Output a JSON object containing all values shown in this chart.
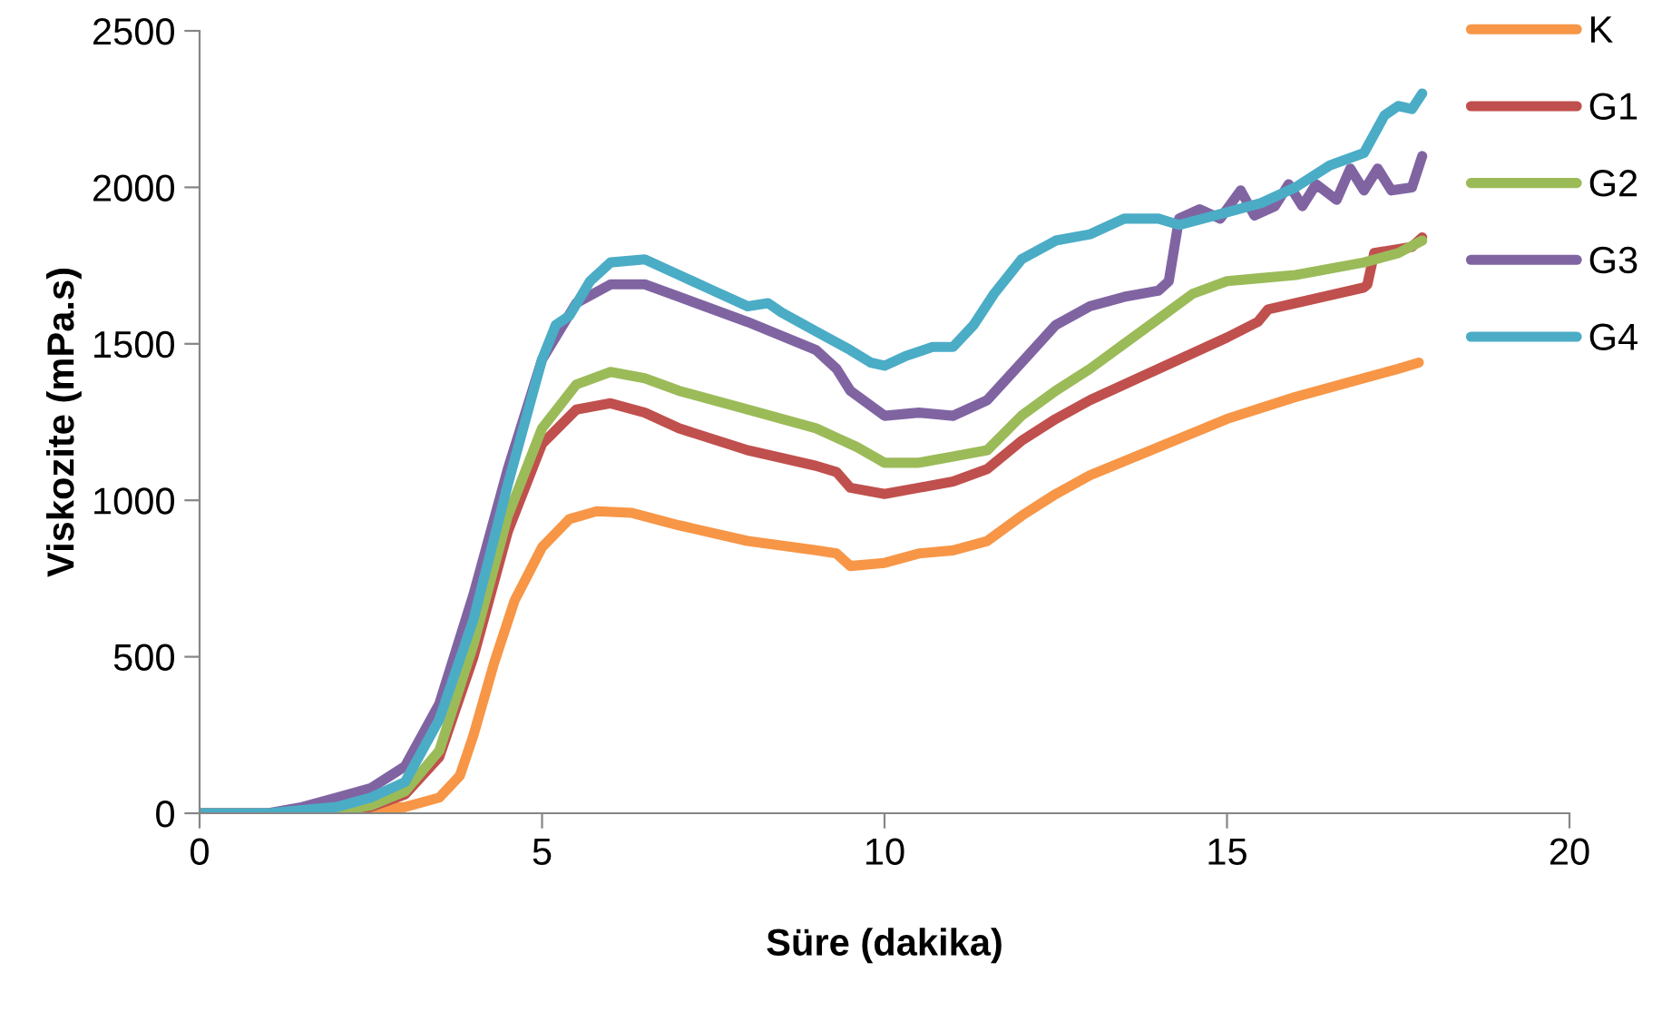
{
  "chart_data": {
    "type": "line",
    "xlabel": "Süre (dakika)",
    "ylabel": "Viskozite (mPa.s)",
    "xlim": [
      0,
      20
    ],
    "xticks": [
      0,
      5,
      10,
      15,
      20
    ],
    "ylim": [
      0,
      2500
    ],
    "yticks": [
      0,
      500,
      1000,
      1500,
      2000,
      2500
    ],
    "grid": false,
    "legend": "top right",
    "marker": "none",
    "line_style": "solid",
    "series": [
      {
        "name": "K",
        "color": "#f79646",
        "x": [
          0,
          1,
          2,
          3,
          3.5,
          3.8,
          4.0,
          4.3,
          4.6,
          5.0,
          5.4,
          5.8,
          6.3,
          7,
          8,
          9,
          9.3,
          9.5,
          10,
          10.5,
          11,
          11.5,
          12,
          12.5,
          13,
          14,
          15,
          16,
          17,
          17.5,
          17.8
        ],
        "values": [
          0,
          0,
          5,
          20,
          50,
          120,
          250,
          480,
          680,
          850,
          940,
          965,
          960,
          920,
          870,
          840,
          830,
          790,
          800,
          830,
          840,
          870,
          950,
          1020,
          1080,
          1170,
          1260,
          1330,
          1390,
          1420,
          1440
        ]
      },
      {
        "name": "G1",
        "color": "#c0504d",
        "x": [
          2,
          2.5,
          3,
          3.5,
          4,
          4.5,
          5,
          5.5,
          6,
          6.5,
          7,
          8,
          9,
          9.3,
          9.5,
          10,
          10.5,
          11,
          11.5,
          12,
          12.5,
          13,
          14,
          15,
          15.45,
          15.6,
          16,
          17,
          17.05,
          17.15,
          17.7,
          17.85
        ],
        "values": [
          5,
          20,
          60,
          180,
          500,
          900,
          1180,
          1290,
          1310,
          1280,
          1230,
          1160,
          1110,
          1090,
          1040,
          1020,
          1040,
          1060,
          1100,
          1190,
          1260,
          1320,
          1420,
          1520,
          1570,
          1610,
          1630,
          1680,
          1690,
          1790,
          1810,
          1840
        ]
      },
      {
        "name": "G2",
        "color": "#9bbb59",
        "x": [
          0,
          1,
          2,
          2.5,
          3,
          3.5,
          4,
          4.5,
          5,
          5.5,
          6,
          6.5,
          7,
          8,
          9,
          9.3,
          9.6,
          10,
          10.5,
          11,
          11.5,
          12,
          12.5,
          13,
          13.5,
          14,
          14.5,
          15,
          15.5,
          16,
          17,
          17.5,
          17.85
        ],
        "values": [
          0,
          0,
          5,
          25,
          70,
          200,
          540,
          950,
          1230,
          1370,
          1410,
          1390,
          1350,
          1290,
          1230,
          1200,
          1170,
          1120,
          1120,
          1140,
          1160,
          1270,
          1350,
          1420,
          1500,
          1580,
          1660,
          1700,
          1710,
          1720,
          1760,
          1790,
          1830
        ]
      },
      {
        "name": "G3",
        "color": "#8064a2",
        "x": [
          0,
          1,
          1.5,
          2,
          2.5,
          3,
          3.5,
          4,
          4.5,
          5,
          5.5,
          6,
          6.5,
          7,
          8,
          9,
          9.3,
          9.5,
          10,
          10.5,
          11,
          11.5,
          12,
          12.5,
          13,
          13.5,
          14,
          14.15,
          14.3,
          14.6,
          14.9,
          15.2,
          15.4,
          15.7,
          15.9,
          16.1,
          16.3,
          16.6,
          16.8,
          17,
          17.2,
          17.4,
          17.7,
          17.85
        ],
        "values": [
          0,
          0,
          20,
          50,
          80,
          150,
          350,
          700,
          1100,
          1450,
          1630,
          1690,
          1690,
          1650,
          1570,
          1480,
          1420,
          1350,
          1270,
          1280,
          1270,
          1320,
          1440,
          1560,
          1620,
          1650,
          1670,
          1700,
          1900,
          1930,
          1900,
          1990,
          1910,
          1940,
          2010,
          1940,
          2010,
          1960,
          2060,
          1990,
          2060,
          1990,
          2000,
          2100
        ]
      },
      {
        "name": "G4",
        "color": "#4bacc6",
        "x": [
          0,
          1,
          2,
          2.5,
          3,
          3.5,
          4,
          4.5,
          5,
          5.2,
          5.4,
          5.7,
          6,
          6.5,
          7,
          7.5,
          8,
          8.3,
          8.5,
          9,
          9.5,
          9.8,
          10,
          10.3,
          10.7,
          11,
          11.3,
          11.6,
          12,
          12.5,
          13,
          13.5,
          14,
          14.3,
          15,
          15.5,
          16,
          16.5,
          17,
          17.3,
          17.5,
          17.7,
          17.85
        ],
        "values": [
          0,
          0,
          20,
          50,
          100,
          300,
          620,
          1050,
          1450,
          1560,
          1590,
          1700,
          1760,
          1770,
          1720,
          1670,
          1620,
          1630,
          1600,
          1540,
          1480,
          1440,
          1430,
          1460,
          1490,
          1490,
          1560,
          1660,
          1770,
          1830,
          1850,
          1900,
          1900,
          1880,
          1920,
          1950,
          2000,
          2070,
          2110,
          2230,
          2260,
          2250,
          2300
        ]
      }
    ]
  }
}
